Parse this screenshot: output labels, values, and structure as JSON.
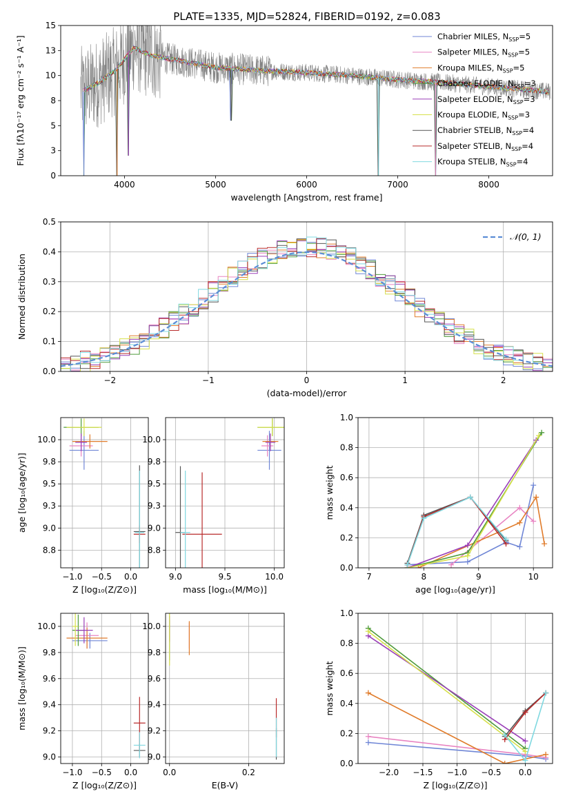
{
  "figure_title": "PLATE=1335, MJD=52824, FIBERID=0192, z=0.083",
  "colors": [
    "#6f86d6",
    "#e884c2",
    "#e07b2a",
    "#4d9a3a",
    "#9a3fb8",
    "#d6e04a",
    "#555555",
    "#b82a2a",
    "#7fd8e0"
  ],
  "models": [
    {
      "name": "Chabrier MILES",
      "nssp": "5"
    },
    {
      "name": "Salpeter MILES",
      "nssp": "5"
    },
    {
      "name": "Kroupa MILES",
      "nssp": "5"
    },
    {
      "name": "Chabrier ELODIE",
      "nssp": "3"
    },
    {
      "name": "Salpeter ELODIE",
      "nssp": "3"
    },
    {
      "name": "Kroupa ELODIE",
      "nssp": "3"
    },
    {
      "name": "Chabrier STELIB",
      "nssp": "4"
    },
    {
      "name": "Salpeter STELIB",
      "nssp": "4"
    },
    {
      "name": "Kroupa STELIB",
      "nssp": "4"
    }
  ],
  "chart_data": [
    {
      "id": "spectrum",
      "type": "line",
      "xlabel": "wavelength [Angstrom, rest frame]",
      "ylabel": "Flux [fλ10⁻¹⁷ erg cm⁻² s⁻¹ A⁻¹]",
      "xlim": [
        3300,
        8700
      ],
      "ylim": [
        0,
        15
      ],
      "xticks": [
        4000,
        5000,
        6000,
        7000,
        8000
      ],
      "yticks": [
        0.0,
        2.5,
        5.0,
        7.5,
        10.0,
        12.5,
        15.0
      ],
      "grid": false,
      "legend": "top-right",
      "continuum": [
        [
          3550,
          8.5
        ],
        [
          3700,
          9.2
        ],
        [
          3900,
          10.5
        ],
        [
          4100,
          12.8
        ],
        [
          4300,
          12.0
        ],
        [
          4600,
          11.5
        ],
        [
          5000,
          10.8
        ],
        [
          5500,
          10.5
        ],
        [
          6000,
          10.3
        ],
        [
          6500,
          10.0
        ],
        [
          7000,
          9.6
        ],
        [
          7500,
          9.3
        ],
        [
          8000,
          8.9
        ],
        [
          8400,
          8.6
        ],
        [
          8650,
          8.4
        ]
      ],
      "dips": [
        [
          3555,
          0.0
        ],
        [
          3920,
          0.0
        ],
        [
          4045,
          2.0
        ],
        [
          5170,
          5.5
        ],
        [
          6790,
          0.0
        ],
        [
          7415,
          0.0
        ]
      ]
    },
    {
      "id": "residuals",
      "type": "line",
      "xlabel": "(data-model)/error",
      "ylabel": "Normed distribution",
      "xlim": [
        -2.5,
        2.5
      ],
      "ylim": [
        0,
        0.5
      ],
      "xticks": [
        -2,
        -1,
        0,
        1,
        2
      ],
      "yticks": [
        0.0,
        0.1,
        0.2,
        0.3,
        0.4,
        0.5
      ],
      "grid": true,
      "legend": "top-right",
      "gaussian_label": "𝒩(0, 1)",
      "bin_width": 0.1
    },
    {
      "id": "age-vs-Z",
      "type": "scatter",
      "xlabel": "Z [log₁₀(Z/Z⊙)]",
      "ylabel": "age  [log₁₀(age/yr)]",
      "xlim": [
        -1.2,
        0.3
      ],
      "ylim": [
        8.55,
        10.25
      ],
      "xticks": [
        -1.0,
        -0.5,
        0.0
      ],
      "yticks": [
        8.75,
        9.0,
        9.25,
        9.5,
        9.75,
        10.0
      ],
      "grid": true,
      "points": [
        {
          "x": -0.8,
          "y": 9.88,
          "xerr": 0.25,
          "yerr": 0.22,
          "c": 0
        },
        {
          "x": -0.85,
          "y": 9.93,
          "xerr": 0.2,
          "yerr": 0.12,
          "c": 1
        },
        {
          "x": -0.7,
          "y": 9.98,
          "xerr": 0.3,
          "yerr": 0.08,
          "c": 2
        },
        {
          "x": -0.85,
          "y": 10.14,
          "xerr": 0.3,
          "yerr": 0.1,
          "c": 3
        },
        {
          "x": -0.85,
          "y": 9.97,
          "xerr": 0.1,
          "yerr": 0.1,
          "c": 4
        },
        {
          "x": -0.8,
          "y": 10.14,
          "xerr": 0.3,
          "yerr": 0.1,
          "c": 5
        },
        {
          "x": 0.15,
          "y": 8.96,
          "xerr": 0.1,
          "yerr": 0.75,
          "c": 6
        },
        {
          "x": 0.15,
          "y": 8.93,
          "xerr": 0.1,
          "yerr": 0.1,
          "c": 7
        },
        {
          "x": 0.15,
          "y": 8.95,
          "xerr": 0.08,
          "yerr": 0.7,
          "c": 8
        }
      ]
    },
    {
      "id": "age-vs-mass",
      "type": "scatter",
      "xlabel": "mass [log₁₀(M/M⊙)]",
      "ylabel": "",
      "xlim": [
        8.9,
        10.1
      ],
      "ylim": [
        8.55,
        10.25
      ],
      "xticks": [
        9.0,
        9.5,
        10.0
      ],
      "yticks": [
        8.75,
        9.0,
        9.25,
        9.5,
        9.75,
        10.0
      ],
      "grid": true,
      "points": [
        {
          "x": 9.95,
          "y": 9.88,
          "xerr": 0.12,
          "yerr": 0.22,
          "c": 0
        },
        {
          "x": 9.93,
          "y": 9.93,
          "xerr": 0.06,
          "yerr": 0.12,
          "c": 1
        },
        {
          "x": 9.96,
          "y": 9.98,
          "xerr": 0.08,
          "yerr": 0.08,
          "c": 2
        },
        {
          "x": 9.98,
          "y": 10.14,
          "xerr": 0.15,
          "yerr": 0.1,
          "c": 3
        },
        {
          "x": 9.96,
          "y": 9.97,
          "xerr": 0.05,
          "yerr": 0.1,
          "c": 4
        },
        {
          "x": 9.98,
          "y": 10.14,
          "xerr": 0.15,
          "yerr": 0.1,
          "c": 5
        },
        {
          "x": 9.05,
          "y": 8.95,
          "xerr": 0.05,
          "yerr": 0.75,
          "c": 6
        },
        {
          "x": 9.27,
          "y": 8.93,
          "xerr": 0.2,
          "yerr": 0.7,
          "c": 7
        },
        {
          "x": 9.1,
          "y": 8.95,
          "xerr": 0.05,
          "yerr": 0.7,
          "c": 8
        }
      ]
    },
    {
      "id": "mass-weight-vs-age",
      "type": "line",
      "xlabel": "age  [log₁₀(age/yr)]",
      "ylabel": "mass weight",
      "xlim": [
        6.8,
        10.35
      ],
      "ylim": [
        0,
        1
      ],
      "xticks": [
        7,
        8,
        9,
        10
      ],
      "yticks": [
        0.0,
        0.2,
        0.4,
        0.6,
        0.8,
        1.0
      ],
      "grid": true,
      "series": [
        {
          "c": 0,
          "x": [
            7.7,
            8.8,
            9.5,
            9.75,
            10.0
          ],
          "y": [
            0.02,
            0.04,
            0.17,
            0.14,
            0.55
          ]
        },
        {
          "c": 1,
          "x": [
            8.5,
            9.75,
            10.0
          ],
          "y": [
            0.02,
            0.4,
            0.31
          ]
        },
        {
          "c": 2,
          "x": [
            7.9,
            9.75,
            10.05,
            10.2
          ],
          "y": [
            0.0,
            0.3,
            0.47,
            0.16
          ]
        },
        {
          "c": 3,
          "x": [
            7.7,
            8.8,
            10.15
          ],
          "y": [
            0.0,
            0.1,
            0.9
          ]
        },
        {
          "c": 4,
          "x": [
            7.7,
            8.8,
            10.05
          ],
          "y": [
            0.0,
            0.15,
            0.85
          ]
        },
        {
          "c": 5,
          "x": [
            7.7,
            8.8,
            10.1
          ],
          "y": [
            0.0,
            0.08,
            0.88
          ]
        },
        {
          "c": 6,
          "x": [
            7.7,
            8.0,
            8.85,
            9.5
          ],
          "y": [
            0.03,
            0.35,
            0.47,
            0.18
          ]
        },
        {
          "c": 7,
          "x": [
            7.7,
            8.0,
            8.85,
            9.5
          ],
          "y": [
            0.02,
            0.34,
            0.47,
            0.16
          ]
        },
        {
          "c": 8,
          "x": [
            7.7,
            8.0,
            8.85,
            9.5
          ],
          "y": [
            0.02,
            0.33,
            0.47,
            0.19
          ]
        }
      ]
    },
    {
      "id": "mass-vs-Z",
      "type": "scatter",
      "xlabel": "Z [log₁₀(Z/Z⊙)]",
      "ylabel": "mass [log₁₀(M/M⊙)]",
      "xlim": [
        -1.2,
        0.3
      ],
      "ylim": [
        8.95,
        10.1
      ],
      "xticks": [
        -1.0,
        -0.5,
        0.0
      ],
      "yticks": [
        9.0,
        9.2,
        9.4,
        9.6,
        9.8,
        10.0
      ],
      "grid": true,
      "points": [
        {
          "x": -0.7,
          "y": 9.89,
          "xerr": 0.3,
          "yerr": 0.06,
          "c": 0
        },
        {
          "x": -0.75,
          "y": 9.93,
          "xerr": 0.2,
          "yerr": 0.1,
          "c": 1
        },
        {
          "x": -0.75,
          "y": 9.91,
          "xerr": 0.35,
          "yerr": 0.08,
          "c": 2
        },
        {
          "x": -0.9,
          "y": 9.97,
          "xerr": 0.1,
          "yerr": 0.12,
          "c": 3
        },
        {
          "x": -0.8,
          "y": 9.97,
          "xerr": 0.15,
          "yerr": 0.1,
          "c": 4
        },
        {
          "x": -0.95,
          "y": 10.0,
          "xerr": 0.05,
          "yerr": 0.15,
          "c": 5
        },
        {
          "x": 0.15,
          "y": 9.05,
          "xerr": 0.1,
          "yerr": 0.05,
          "c": 6
        },
        {
          "x": 0.15,
          "y": 9.26,
          "xerr": 0.1,
          "yerr": 0.2,
          "c": 7
        },
        {
          "x": 0.15,
          "y": 9.09,
          "xerr": 0.1,
          "yerr": 0.1,
          "c": 8
        }
      ]
    },
    {
      "id": "mass-vs-EBV",
      "type": "scatter",
      "xlabel": "E(B-V)",
      "ylabel": "",
      "xlim": [
        -0.01,
        0.29
      ],
      "ylim": [
        8.95,
        10.1
      ],
      "xticks": [
        0.0,
        0.2
      ],
      "yticks": [
        9.0,
        9.2,
        9.4,
        9.6,
        9.8,
        10.0
      ],
      "grid": true,
      "points": [
        {
          "x": 0.0,
          "y": 9.89,
          "xerr": 0.0,
          "yerr": 0.15,
          "c": 0
        },
        {
          "x": 0.05,
          "y": 9.93,
          "xerr": 0.0,
          "yerr": 0.1,
          "c": 1
        },
        {
          "x": 0.05,
          "y": 9.91,
          "xerr": 0.0,
          "yerr": 0.13,
          "c": 2
        },
        {
          "x": 0.0,
          "y": 9.97,
          "xerr": 0.0,
          "yerr": 0.08,
          "c": 3
        },
        {
          "x": 0.0,
          "y": 9.98,
          "xerr": 0.0,
          "yerr": 0.1,
          "c": 4
        },
        {
          "x": 0.0,
          "y": 9.9,
          "xerr": 0.0,
          "yerr": 0.2,
          "c": 5
        },
        {
          "x": 0.27,
          "y": 9.1,
          "xerr": 0.0,
          "yerr": 0.12,
          "c": 6
        },
        {
          "x": 0.27,
          "y": 9.3,
          "xerr": 0.0,
          "yerr": 0.15,
          "c": 7
        },
        {
          "x": 0.27,
          "y": 9.15,
          "xerr": 0.0,
          "yerr": 0.15,
          "c": 8
        }
      ]
    },
    {
      "id": "mass-weight-vs-Z",
      "type": "line",
      "xlabel": "Z [log₁₀(Z/Z⊙)]",
      "ylabel": "mass weight",
      "xlim": [
        -2.45,
        0.4
      ],
      "ylim": [
        0,
        1
      ],
      "xticks": [
        -2.0,
        -1.5,
        -1.0,
        -0.5,
        0.0
      ],
      "yticks": [
        0.0,
        0.2,
        0.4,
        0.6,
        0.8,
        1.0
      ],
      "grid": true,
      "series": [
        {
          "c": 0,
          "x": [
            -2.3,
            0.0,
            0.3
          ],
          "y": [
            0.14,
            0.05,
            0.03
          ]
        },
        {
          "c": 1,
          "x": [
            -2.3,
            0.0,
            0.3
          ],
          "y": [
            0.18,
            0.06,
            0.04
          ]
        },
        {
          "c": 2,
          "x": [
            -2.3,
            -0.3,
            0.3
          ],
          "y": [
            0.47,
            0.0,
            0.06
          ]
        },
        {
          "c": 3,
          "x": [
            -2.3,
            0.0
          ],
          "y": [
            0.9,
            0.1
          ]
        },
        {
          "c": 4,
          "x": [
            -2.3,
            0.0
          ],
          "y": [
            0.85,
            0.15
          ]
        },
        {
          "c": 5,
          "x": [
            -2.3,
            0.0
          ],
          "y": [
            0.88,
            0.08
          ]
        },
        {
          "c": 6,
          "x": [
            -0.3,
            0.0,
            0.3
          ],
          "y": [
            0.18,
            0.35,
            0.47
          ]
        },
        {
          "c": 7,
          "x": [
            -0.3,
            0.0,
            0.3
          ],
          "y": [
            0.16,
            0.34,
            0.47
          ]
        },
        {
          "c": 8,
          "x": [
            -0.3,
            0.0,
            0.3
          ],
          "y": [
            0.19,
            0.02,
            0.47
          ]
        }
      ]
    }
  ]
}
